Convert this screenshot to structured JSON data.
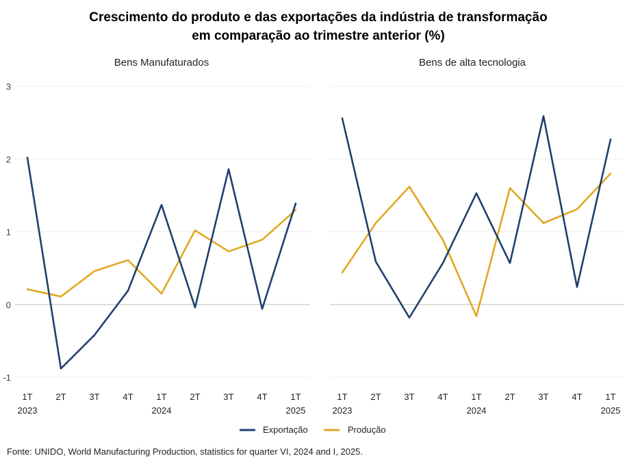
{
  "title_line1": "Crescimento do produto e das exportações da indústria de transformação",
  "title_line2": "em comparação ao trimestre anterior (%)",
  "source": "Fonte: UNIDO, World  Manufacturing Production,  statistics for quarter VI, 2024 and I, 2025.",
  "colors": {
    "exportacao": "#1f3f6e",
    "producao": "#e0a820",
    "grid": "#eeeeee",
    "zero": "#cccccc"
  },
  "legend": {
    "exportacao": "Exportação",
    "producao": "Produção"
  },
  "chart_data": [
    {
      "type": "line",
      "title": "Bens Manufaturados",
      "categories": [
        "1T",
        "2T",
        "3T",
        "4T",
        "1T",
        "2T",
        "3T",
        "4T",
        "1T"
      ],
      "year_labels": [
        "2023",
        "",
        "",
        "",
        "2024",
        "",
        "",
        "",
        "2025"
      ],
      "ylim": [
        -1,
        3
      ],
      "yticks": [
        "-1",
        "0",
        "1",
        "2",
        "3"
      ],
      "grid": true,
      "legend_position": "bottom",
      "series": [
        {
          "name": "Exportação",
          "values": [
            2.02,
            -0.88,
            -0.42,
            0.19,
            1.37,
            -0.04,
            1.86,
            -0.06,
            1.39
          ]
        },
        {
          "name": "Produção",
          "values": [
            0.21,
            0.11,
            0.46,
            0.61,
            0.15,
            1.02,
            0.73,
            0.89,
            1.3
          ]
        }
      ]
    },
    {
      "type": "line",
      "title": "Bens de alta tecnologia",
      "categories": [
        "1T",
        "2T",
        "3T",
        "4T",
        "1T",
        "2T",
        "3T",
        "4T",
        "1T"
      ],
      "year_labels": [
        "2023",
        "",
        "",
        "",
        "2024",
        "",
        "",
        "",
        "2025"
      ],
      "ylim": [
        -1,
        3
      ],
      "grid": true,
      "legend_position": "bottom",
      "series": [
        {
          "name": "Exportação",
          "values": [
            2.56,
            0.59,
            -0.18,
            0.57,
            1.53,
            0.57,
            2.59,
            0.24,
            2.27
          ]
        },
        {
          "name": "Produção",
          "values": [
            0.44,
            1.12,
            1.62,
            0.89,
            -0.16,
            1.6,
            1.12,
            1.31,
            1.8
          ]
        }
      ]
    }
  ]
}
